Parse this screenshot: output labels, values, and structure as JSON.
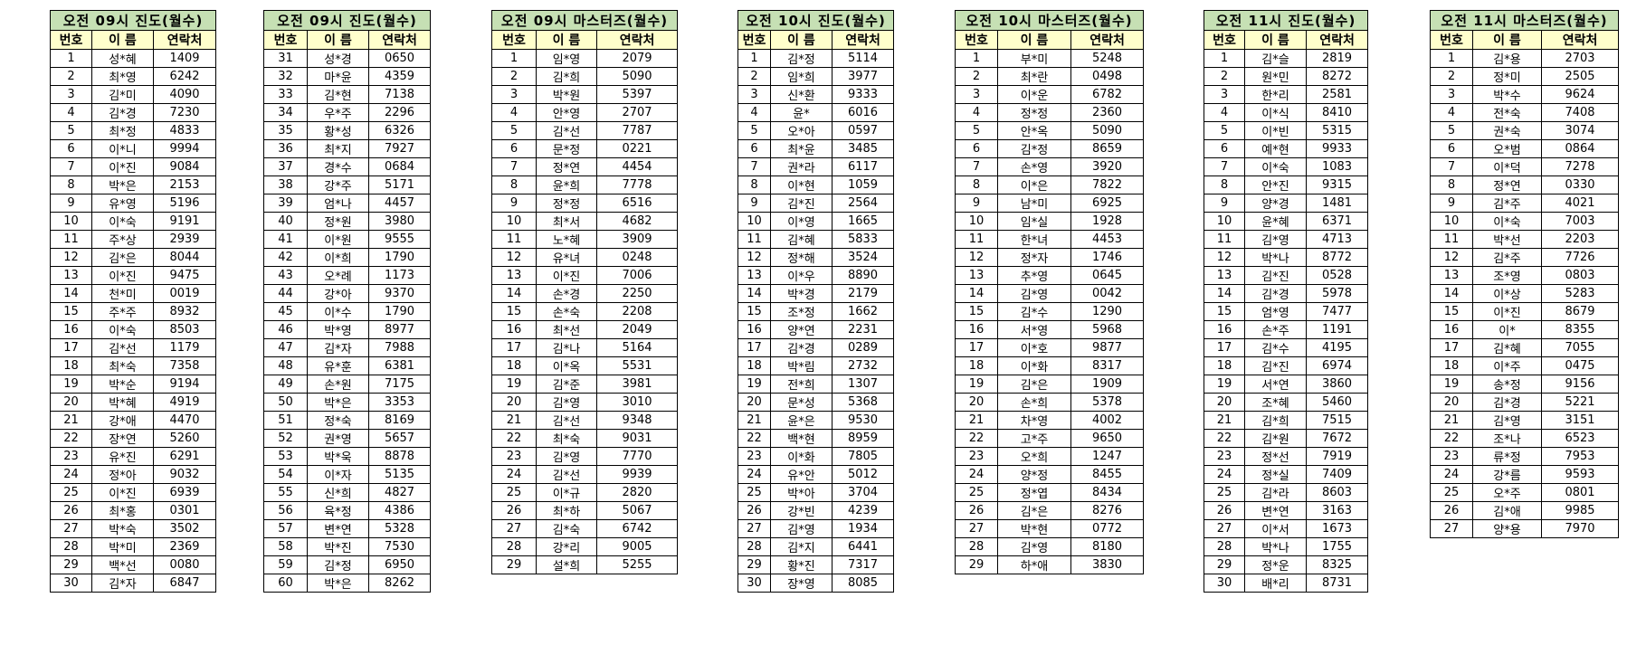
{
  "colors": {
    "title_bg": "#c6e0b4",
    "header_bg": "#ffffcc",
    "border": "#000000"
  },
  "headers": [
    "번호",
    "이 름",
    "연락처"
  ],
  "tables": [
    {
      "title": "오전 09시 진도(월수)",
      "rows": [
        [
          "1",
          "성*혜",
          "1409"
        ],
        [
          "2",
          "최*영",
          "6242"
        ],
        [
          "3",
          "김*미",
          "4090"
        ],
        [
          "4",
          "김*경",
          "7230"
        ],
        [
          "5",
          "최*정",
          "4833"
        ],
        [
          "6",
          "이*니",
          "9994"
        ],
        [
          "7",
          "이*진",
          "9084"
        ],
        [
          "8",
          "박*은",
          "2153"
        ],
        [
          "9",
          "유*영",
          "5196"
        ],
        [
          "10",
          "이*숙",
          "9191"
        ],
        [
          "11",
          "주*상",
          "2939"
        ],
        [
          "12",
          "김*은",
          "8044"
        ],
        [
          "13",
          "이*진",
          "9475"
        ],
        [
          "14",
          "천*미",
          "0019"
        ],
        [
          "15",
          "주*주",
          "8932"
        ],
        [
          "16",
          "이*숙",
          "8503"
        ],
        [
          "17",
          "김*선",
          "1179"
        ],
        [
          "18",
          "최*숙",
          "7358"
        ],
        [
          "19",
          "박*순",
          "9194"
        ],
        [
          "20",
          "박*혜",
          "4919"
        ],
        [
          "21",
          "강*애",
          "4470"
        ],
        [
          "22",
          "장*연",
          "5260"
        ],
        [
          "23",
          "유*진",
          "6291"
        ],
        [
          "24",
          "정*아",
          "9032"
        ],
        [
          "25",
          "이*진",
          "6939"
        ],
        [
          "26",
          "최*홍",
          "0301"
        ],
        [
          "27",
          "박*숙",
          "3502"
        ],
        [
          "28",
          "박*미",
          "2369"
        ],
        [
          "29",
          "백*선",
          "0080"
        ],
        [
          "30",
          "김*자",
          "6847"
        ]
      ]
    },
    {
      "title": "오전 09시 진도(월수)",
      "rows": [
        [
          "31",
          "성*경",
          "0650"
        ],
        [
          "32",
          "마*윤",
          "4359"
        ],
        [
          "33",
          "김*현",
          "7138"
        ],
        [
          "34",
          "우*주",
          "2296"
        ],
        [
          "35",
          "황*성",
          "6326"
        ],
        [
          "36",
          "최*지",
          "7927"
        ],
        [
          "37",
          "경*수",
          "0684"
        ],
        [
          "38",
          "강*주",
          "5171"
        ],
        [
          "39",
          "엄*나",
          "4457"
        ],
        [
          "40",
          "정*원",
          "3980"
        ],
        [
          "41",
          "이*원",
          "9555"
        ],
        [
          "42",
          "이*희",
          "1790"
        ],
        [
          "43",
          "오*례",
          "1173"
        ],
        [
          "44",
          "강*아",
          "9370"
        ],
        [
          "45",
          "이*수",
          "1790"
        ],
        [
          "46",
          "박*영",
          "8977"
        ],
        [
          "47",
          "김*자",
          "7988"
        ],
        [
          "48",
          "유*훈",
          "6381"
        ],
        [
          "49",
          "손*원",
          "7175"
        ],
        [
          "50",
          "박*은",
          "3353"
        ],
        [
          "51",
          "정*숙",
          "8169"
        ],
        [
          "52",
          "권*영",
          "5657"
        ],
        [
          "53",
          "박*욱",
          "8878"
        ],
        [
          "54",
          "이*자",
          "5135"
        ],
        [
          "55",
          "신*희",
          "4827"
        ],
        [
          "56",
          "육*정",
          "4386"
        ],
        [
          "57",
          "변*연",
          "5328"
        ],
        [
          "58",
          "박*진",
          "7530"
        ],
        [
          "59",
          "김*정",
          "6950"
        ],
        [
          "60",
          "박*은",
          "8262"
        ]
      ]
    },
    {
      "title": "오전 09시 마스터즈(월수)",
      "rows": [
        [
          "1",
          "임*영",
          "2079"
        ],
        [
          "2",
          "김*희",
          "5090"
        ],
        [
          "3",
          "박*원",
          "5397"
        ],
        [
          "4",
          "안*영",
          "2707"
        ],
        [
          "5",
          "김*선",
          "7787"
        ],
        [
          "6",
          "문*정",
          "0221"
        ],
        [
          "7",
          "정*연",
          "4454"
        ],
        [
          "8",
          "윤*희",
          "7778"
        ],
        [
          "9",
          "정*정",
          "6516"
        ],
        [
          "10",
          "최*서",
          "4682"
        ],
        [
          "11",
          "노*혜",
          "3909"
        ],
        [
          "12",
          "유*녀",
          "0248"
        ],
        [
          "13",
          "이*진",
          "7006"
        ],
        [
          "14",
          "손*경",
          "2250"
        ],
        [
          "15",
          "손*숙",
          "2208"
        ],
        [
          "16",
          "최*선",
          "2049"
        ],
        [
          "17",
          "김*나",
          "5164"
        ],
        [
          "18",
          "이*옥",
          "5531"
        ],
        [
          "19",
          "김*준",
          "3981"
        ],
        [
          "20",
          "김*영",
          "3010"
        ],
        [
          "21",
          "김*선",
          "9348"
        ],
        [
          "22",
          "최*숙",
          "9031"
        ],
        [
          "23",
          "김*영",
          "7770"
        ],
        [
          "24",
          "김*선",
          "9939"
        ],
        [
          "25",
          "이*규",
          "2820"
        ],
        [
          "26",
          "최*하",
          "5067"
        ],
        [
          "27",
          "김*숙",
          "6742"
        ],
        [
          "28",
          "강*리",
          "9005"
        ],
        [
          "29",
          "설*희",
          "5255"
        ]
      ]
    },
    {
      "title": "오전 10시 진도(월수)",
      "rows": [
        [
          "1",
          "김*정",
          "5114"
        ],
        [
          "2",
          "임*희",
          "3977"
        ],
        [
          "3",
          "신*환",
          "9333"
        ],
        [
          "4",
          "윤*",
          "6016"
        ],
        [
          "5",
          "오*아",
          "0597"
        ],
        [
          "6",
          "최*윤",
          "3485"
        ],
        [
          "7",
          "권*라",
          "6117"
        ],
        [
          "8",
          "이*현",
          "1059"
        ],
        [
          "9",
          "김*진",
          "2564"
        ],
        [
          "10",
          "이*영",
          "1665"
        ],
        [
          "11",
          "김*혜",
          "5833"
        ],
        [
          "12",
          "정*해",
          "3524"
        ],
        [
          "13",
          "이*우",
          "8890"
        ],
        [
          "14",
          "박*경",
          "2179"
        ],
        [
          "15",
          "조*정",
          "1662"
        ],
        [
          "16",
          "양*연",
          "2231"
        ],
        [
          "17",
          "김*경",
          "0289"
        ],
        [
          "18",
          "박*림",
          "2732"
        ],
        [
          "19",
          "전*희",
          "1307"
        ],
        [
          "20",
          "문*성",
          "5368"
        ],
        [
          "21",
          "윤*은",
          "9530"
        ],
        [
          "22",
          "백*현",
          "8959"
        ],
        [
          "23",
          "이*화",
          "7805"
        ],
        [
          "24",
          "유*안",
          "5012"
        ],
        [
          "25",
          "박*아",
          "3704"
        ],
        [
          "26",
          "강*빈",
          "4239"
        ],
        [
          "27",
          "김*영",
          "1934"
        ],
        [
          "28",
          "김*지",
          "6441"
        ],
        [
          "29",
          "황*진",
          "7317"
        ],
        [
          "30",
          "장*영",
          "8085"
        ]
      ]
    },
    {
      "title": "오전 10시 마스터즈(월수)",
      "rows": [
        [
          "1",
          "부*미",
          "5248"
        ],
        [
          "2",
          "최*란",
          "0498"
        ],
        [
          "3",
          "이*운",
          "6782"
        ],
        [
          "4",
          "정*정",
          "2360"
        ],
        [
          "5",
          "안*옥",
          "5090"
        ],
        [
          "6",
          "김*정",
          "8659"
        ],
        [
          "7",
          "손*영",
          "3920"
        ],
        [
          "8",
          "이*은",
          "7822"
        ],
        [
          "9",
          "남*미",
          "6925"
        ],
        [
          "10",
          "임*실",
          "1928"
        ],
        [
          "11",
          "한*녀",
          "4453"
        ],
        [
          "12",
          "정*자",
          "1746"
        ],
        [
          "13",
          "추*영",
          "0645"
        ],
        [
          "14",
          "김*영",
          "0042"
        ],
        [
          "15",
          "김*수",
          "1290"
        ],
        [
          "16",
          "서*영",
          "5968"
        ],
        [
          "17",
          "이*호",
          "9877"
        ],
        [
          "18",
          "이*화",
          "8317"
        ],
        [
          "19",
          "김*은",
          "1909"
        ],
        [
          "20",
          "손*희",
          "5378"
        ],
        [
          "21",
          "차*영",
          "4002"
        ],
        [
          "22",
          "고*주",
          "9650"
        ],
        [
          "23",
          "오*희",
          "1247"
        ],
        [
          "24",
          "양*정",
          "8455"
        ],
        [
          "25",
          "정*엽",
          "8434"
        ],
        [
          "26",
          "김*은",
          "8276"
        ],
        [
          "27",
          "박*현",
          "0772"
        ],
        [
          "28",
          "김*영",
          "8180"
        ],
        [
          "29",
          "하*애",
          "3830"
        ]
      ]
    },
    {
      "title": "오전 11시 진도(월수)",
      "rows": [
        [
          "1",
          "김*슬",
          "2819"
        ],
        [
          "2",
          "원*민",
          "8272"
        ],
        [
          "3",
          "한*리",
          "2581"
        ],
        [
          "4",
          "이*식",
          "8410"
        ],
        [
          "5",
          "이*빈",
          "5315"
        ],
        [
          "6",
          "예*현",
          "9933"
        ],
        [
          "7",
          "이*숙",
          "1083"
        ],
        [
          "8",
          "안*진",
          "9315"
        ],
        [
          "9",
          "양*경",
          "1481"
        ],
        [
          "10",
          "윤*혜",
          "6371"
        ],
        [
          "11",
          "김*영",
          "4713"
        ],
        [
          "12",
          "박*나",
          "8772"
        ],
        [
          "13",
          "김*진",
          "0528"
        ],
        [
          "14",
          "김*경",
          "5978"
        ],
        [
          "15",
          "엄*영",
          "7477"
        ],
        [
          "16",
          "손*주",
          "1191"
        ],
        [
          "17",
          "김*수",
          "4195"
        ],
        [
          "18",
          "김*진",
          "6974"
        ],
        [
          "19",
          "서*연",
          "3860"
        ],
        [
          "20",
          "조*혜",
          "5460"
        ],
        [
          "21",
          "김*희",
          "7515"
        ],
        [
          "22",
          "김*원",
          "7672"
        ],
        [
          "23",
          "정*선",
          "7919"
        ],
        [
          "24",
          "정*실",
          "7409"
        ],
        [
          "25",
          "김*라",
          "8603"
        ],
        [
          "26",
          "변*연",
          "3163"
        ],
        [
          "27",
          "이*서",
          "1673"
        ],
        [
          "28",
          "박*나",
          "1755"
        ],
        [
          "29",
          "정*운",
          "8325"
        ],
        [
          "30",
          "배*리",
          "8731"
        ]
      ]
    },
    {
      "title": "오전 11시 마스터즈(월수)",
      "rows": [
        [
          "1",
          "김*용",
          "2703"
        ],
        [
          "2",
          "정*미",
          "2505"
        ],
        [
          "3",
          "박*수",
          "9624"
        ],
        [
          "4",
          "전*숙",
          "7408"
        ],
        [
          "5",
          "권*숙",
          "3074"
        ],
        [
          "6",
          "오*범",
          "0864"
        ],
        [
          "7",
          "이*덕",
          "7278"
        ],
        [
          "8",
          "정*연",
          "0330"
        ],
        [
          "9",
          "김*주",
          "4021"
        ],
        [
          "10",
          "이*숙",
          "7003"
        ],
        [
          "11",
          "박*선",
          "2203"
        ],
        [
          "12",
          "김*주",
          "7726"
        ],
        [
          "13",
          "조*영",
          "0803"
        ],
        [
          "14",
          "이*상",
          "5283"
        ],
        [
          "15",
          "이*진",
          "8679"
        ],
        [
          "16",
          "이*",
          "8355"
        ],
        [
          "17",
          "김*혜",
          "7055"
        ],
        [
          "18",
          "이*주",
          "0475"
        ],
        [
          "19",
          "송*정",
          "9156"
        ],
        [
          "20",
          "김*경",
          "5221"
        ],
        [
          "21",
          "김*영",
          "3151"
        ],
        [
          "22",
          "조*나",
          "6523"
        ],
        [
          "23",
          "류*정",
          "7953"
        ],
        [
          "24",
          "강*름",
          "9593"
        ],
        [
          "25",
          "오*주",
          "0801"
        ],
        [
          "26",
          "김*애",
          "9985"
        ],
        [
          "27",
          "양*용",
          "7970"
        ]
      ]
    }
  ]
}
